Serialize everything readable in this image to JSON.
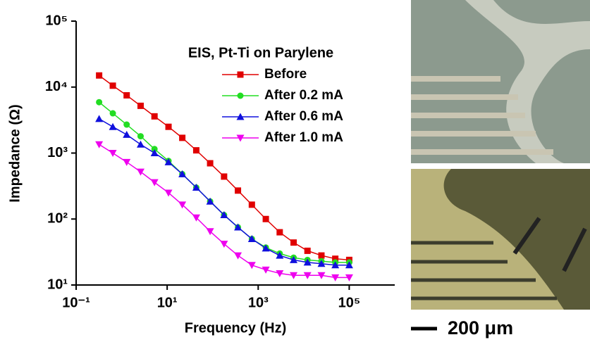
{
  "chart_data": {
    "type": "line",
    "title": "EIS, Pt-Ti on Parylene",
    "x_label": "Frequency (Hz)",
    "y_label": "Impedance (Ω)",
    "x": [
      0.32,
      0.64,
      1.29,
      2.61,
      5.27,
      10.7,
      21.5,
      43.6,
      87.9,
      178,
      359,
      726,
      1470,
      2970,
      6000,
      12100,
      24500,
      49400,
      100000
    ],
    "series": [
      {
        "name": "Before",
        "color": "#e00000",
        "marker": "square",
        "values": [
          15000,
          10500,
          7500,
          5200,
          3600,
          2500,
          1700,
          1100,
          700,
          440,
          270,
          165,
          100,
          63,
          44,
          33,
          28,
          25,
          24
        ]
      },
      {
        "name": "After 0.2 mA",
        "color": "#22dd22",
        "marker": "circle",
        "values": [
          5900,
          4000,
          2700,
          1800,
          1150,
          760,
          480,
          300,
          185,
          115,
          75,
          50,
          37,
          30,
          26,
          24,
          23,
          22,
          22
        ]
      },
      {
        "name": "After 0.6 mA",
        "color": "#1010dd",
        "marker": "triangle-up",
        "values": [
          3300,
          2500,
          1900,
          1350,
          1000,
          730,
          480,
          300,
          185,
          115,
          75,
          50,
          36,
          28,
          24,
          22,
          21,
          20,
          20
        ]
      },
      {
        "name": "After 1.0 mA",
        "color": "#ee00ee",
        "marker": "triangle-down",
        "values": [
          1350,
          1000,
          730,
          520,
          360,
          250,
          165,
          105,
          65,
          42,
          28,
          20,
          17,
          15,
          14,
          14,
          14,
          13,
          13
        ]
      }
    ],
    "x_log": true,
    "y_log": true,
    "xlim": [
      0.1,
      1000000
    ],
    "ylim": [
      10,
      100000
    ],
    "xticks": [
      {
        "value": 0.1,
        "label": "10⁻¹"
      },
      {
        "value": 10,
        "label": "10¹"
      },
      {
        "value": 1000,
        "label": "10³"
      },
      {
        "value": 100000,
        "label": "10⁵"
      }
    ],
    "yticks": [
      {
        "value": 10,
        "label": "10¹"
      },
      {
        "value": 100,
        "label": "10²"
      },
      {
        "value": 1000,
        "label": "10³"
      },
      {
        "value": 10000,
        "label": "10⁴"
      },
      {
        "value": 100000,
        "label": "10⁵"
      }
    ],
    "grid": false,
    "legend": "upper right"
  },
  "micrograph": {
    "scale_bar": "200 μm"
  }
}
